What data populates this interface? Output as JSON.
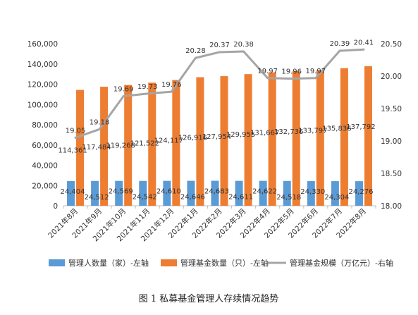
{
  "chart_data": {
    "type": "bar",
    "caption": "图 1  私募基金管理人存续情况趋势",
    "categories": [
      "2021年8月",
      "2021年9月",
      "2021年10月",
      "2021年11月",
      "2021年12月",
      "2022年1月",
      "2022年2月",
      "2022年3月",
      "2022年4月",
      "2022年5月",
      "2022年6月",
      "2022年7月",
      "2022年8月"
    ],
    "series": [
      {
        "name": "管理人数量（家）-左轴",
        "type": "bar",
        "axis": "left",
        "color": "#5B9BD5",
        "values": [
          24404,
          24512,
          24569,
          24542,
          24610,
          24646,
          24683,
          24611,
          24622,
          24518,
          24330,
          24304,
          24276
        ],
        "labels": [
          "24,404",
          "24,512",
          "24,569",
          "24,542",
          "24,610",
          "24,646",
          "24,683",
          "24,611",
          "24,622",
          "24,518",
          "24,330",
          "24,304",
          "24,276"
        ]
      },
      {
        "name": "管理基金数量（只）-左轴",
        "type": "bar",
        "axis": "left",
        "color": "#ED7D31",
        "values": [
          114361,
          117484,
          119268,
          121522,
          124117,
          126916,
          127954,
          129955,
          131667,
          132736,
          133797,
          135836,
          137792
        ],
        "labels": [
          "114,361",
          "117,484",
          "119,268",
          "121,522",
          "124,117",
          "126,916",
          "127,954",
          "129,955",
          "131,667",
          "132,736",
          "133,797",
          "135,836",
          "137,792"
        ]
      },
      {
        "name": "管理基金规模（万亿元）-右轴",
        "type": "line",
        "axis": "right",
        "color": "#A5A5A5",
        "values": [
          19.05,
          19.18,
          19.69,
          19.73,
          19.76,
          20.28,
          20.37,
          20.38,
          19.97,
          19.96,
          19.97,
          20.39,
          20.41
        ],
        "labels": [
          "19.05",
          "19.18",
          "19.69",
          "19.73",
          "19.76",
          "20.28",
          "20.37",
          "20.38",
          "19.97",
          "19.96",
          "19.97",
          "20.39",
          "20.41"
        ]
      }
    ],
    "y_left": {
      "min": 0,
      "max": 160000,
      "step": 20000,
      "ticks": [
        "0",
        "20,000",
        "40,000",
        "60,000",
        "80,000",
        "100,000",
        "120,000",
        "140,000",
        "160,000"
      ]
    },
    "y_right": {
      "min": 18.0,
      "max": 20.5,
      "step": 0.5,
      "ticks": [
        "18.00",
        "18.50",
        "19.00",
        "19.50",
        "20.00",
        "20.50"
      ]
    },
    "grid": false,
    "legend_position": "bottom"
  }
}
